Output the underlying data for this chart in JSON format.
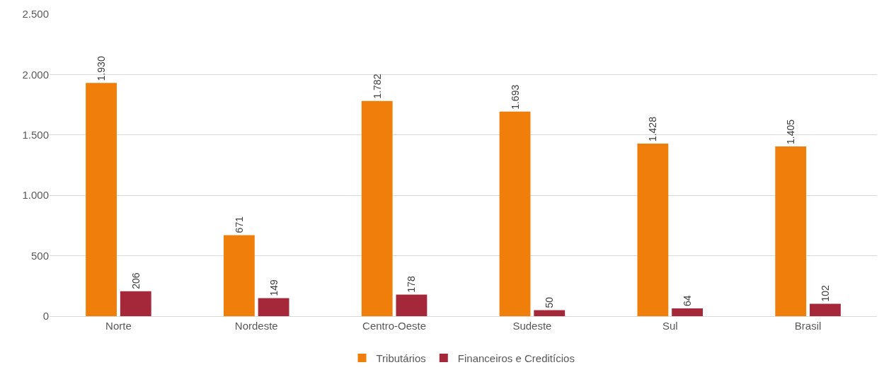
{
  "chart_data": {
    "type": "bar",
    "categories": [
      "Norte",
      "Nordeste",
      "Centro-Oeste",
      "Sudeste",
      "Sul",
      "Brasil"
    ],
    "series": [
      {
        "name": "Tributários",
        "color": "#ef7f0a",
        "values": [
          1930,
          671,
          1782,
          1693,
          1428,
          1405
        ],
        "value_labels": [
          "1.930",
          "671",
          "1.782",
          "1.693",
          "1.428",
          "1.405"
        ]
      },
      {
        "name": "Financeiros e Creditícios",
        "color": "#a5283a",
        "values": [
          206,
          149,
          178,
          50,
          64,
          102
        ],
        "value_labels": [
          "206",
          "149",
          "178",
          "50",
          "64",
          "102"
        ]
      }
    ],
    "ylim": [
      0,
      2500
    ],
    "yticks": [
      0,
      500,
      {
        "value": 1000,
        "label": "1.000"
      },
      {
        "value": 1500,
        "label": "1.500"
      },
      {
        "value": 2000,
        "label": "2.000"
      },
      {
        "value": 2500,
        "label": "2.500"
      }
    ],
    "grid": "y",
    "legend": "bottom"
  }
}
